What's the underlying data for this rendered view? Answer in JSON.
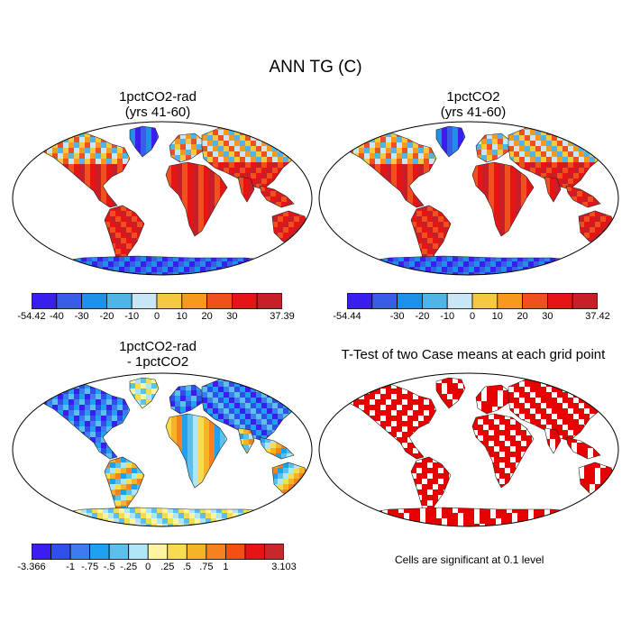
{
  "figure": {
    "title": "ANN TG (C)",
    "note": "Cells are significant at 0.1 level"
  },
  "panels": [
    {
      "id": "p1",
      "title_line1": "1pctCO2-rad",
      "title_line2": "(yrs 41-60)",
      "kind": "temperature",
      "colorbar": {
        "colors": [
          "#3a1ef0",
          "#3a5de8",
          "#1e90e6",
          "#52b4e6",
          "#c8e6f4",
          "#f5c842",
          "#f59a1e",
          "#f0501e",
          "#e61414",
          "#c81e28"
        ],
        "labels": [
          "-54.42",
          "-40",
          "-30",
          "-20",
          "-10",
          "0",
          "10",
          "20",
          "30",
          "37.39"
        ],
        "label_slots": [
          0,
          1,
          2,
          3,
          4,
          5,
          6,
          7,
          8,
          10
        ]
      }
    },
    {
      "id": "p2",
      "title_line1": "1pctCO2",
      "title_line2": "(yrs 41-60)",
      "kind": "temperature",
      "colorbar": {
        "colors": [
          "#3a1ef0",
          "#3a5de8",
          "#1e90e6",
          "#52b4e6",
          "#c8e6f4",
          "#f5c842",
          "#f59a1e",
          "#f0501e",
          "#e61414",
          "#c81e28"
        ],
        "labels": [
          "-54.44",
          "-30",
          "-20",
          "-10",
          "0",
          "10",
          "20",
          "30",
          "37.42"
        ],
        "label_slots": [
          0,
          2,
          3,
          4,
          5,
          6,
          7,
          8,
          10
        ]
      }
    },
    {
      "id": "p3",
      "title_line1": "1pctCO2-rad",
      "title_line2": "- 1pctCO2",
      "kind": "difference",
      "colorbar": {
        "colors": [
          "#3a1ef0",
          "#2f4fe8",
          "#3c7cf0",
          "#1fa0f0",
          "#5cc0ec",
          "#aee6f6",
          "#fff5a0",
          "#f8dc50",
          "#f5b428",
          "#f5821e",
          "#f55014",
          "#e61414",
          "#c8282d"
        ],
        "labels": [
          "-3.366",
          "-1",
          "-.75",
          "-.5",
          "-.25",
          "0",
          ".25",
          ".5",
          ".75",
          "1",
          "3.103"
        ],
        "label_slots": [
          0,
          2,
          3,
          4,
          5,
          6,
          7,
          8,
          9,
          10,
          13
        ]
      }
    },
    {
      "id": "p4",
      "title_line1": "T-Test of two Case means at each grid point",
      "title_line2": "",
      "kind": "significance"
    }
  ]
}
